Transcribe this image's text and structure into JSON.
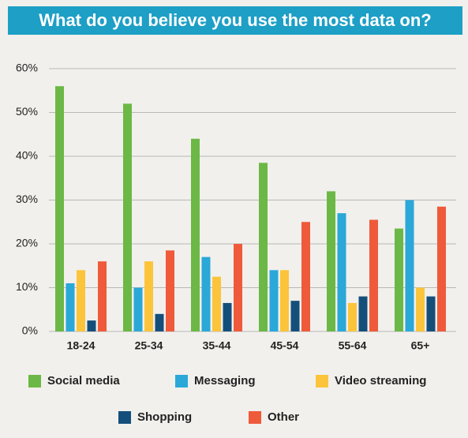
{
  "chart_data": {
    "type": "bar",
    "title": "What do you believe you use the most data on?",
    "categories": [
      "18-24",
      "25-34",
      "35-44",
      "45-54",
      "55-64",
      "65+"
    ],
    "series": [
      {
        "name": "Social media",
        "color": "#6cb846",
        "values": [
          56,
          52,
          44,
          38.5,
          32,
          23.5
        ]
      },
      {
        "name": "Messaging",
        "color": "#2aa8d8",
        "values": [
          11,
          10,
          17,
          14,
          27,
          30
        ]
      },
      {
        "name": "Video streaming",
        "color": "#fcc43b",
        "values": [
          14,
          16,
          12.5,
          14,
          6.5,
          10
        ]
      },
      {
        "name": "Shopping",
        "color": "#144f7b",
        "values": [
          2.5,
          4,
          6.5,
          7,
          8,
          8
        ]
      },
      {
        "name": "Other",
        "color": "#ef5a3a",
        "values": [
          16,
          18.5,
          20,
          25,
          25.5,
          28.5
        ]
      }
    ],
    "ylim": [
      0,
      60
    ],
    "yticks": [
      {
        "value": 0,
        "label": "0%"
      },
      {
        "value": 10,
        "label": "10%"
      },
      {
        "value": 20,
        "label": "20%"
      },
      {
        "value": 30,
        "label": "30%"
      },
      {
        "value": 40,
        "label": "40%"
      },
      {
        "value": 50,
        "label": "50%"
      },
      {
        "value": 60,
        "label": "60%"
      }
    ],
    "grid": true
  }
}
